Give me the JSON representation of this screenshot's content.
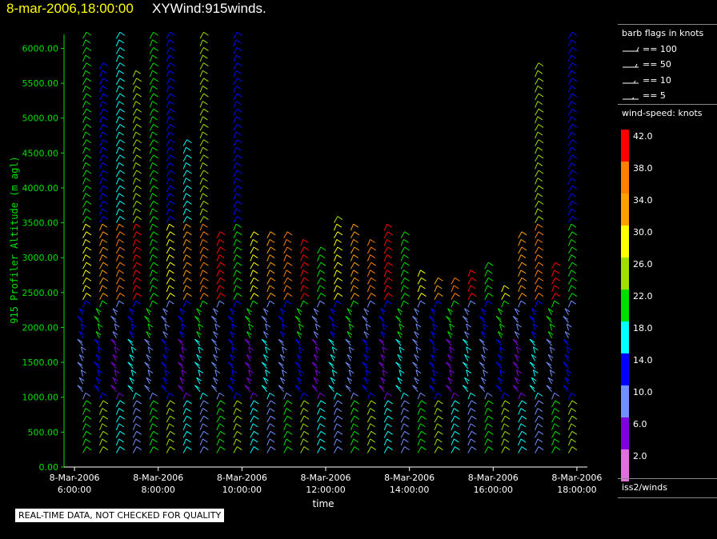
{
  "header": {
    "date": "8-mar-2006,18:00:00",
    "title": "XYWind:915winds."
  },
  "legend": {
    "barb_title": "barb flags in knots",
    "barb_items": [
      "== 100",
      "== 50",
      "== 10",
      "== 5"
    ],
    "speed_title": "wind-speed: knots",
    "speed_values": [
      "42.0",
      "38.0",
      "34.0",
      "30.0",
      "26.0",
      "22.0",
      "18.0",
      "14.0",
      "10.0",
      "6.0",
      "2.0"
    ],
    "speed_colors": [
      "#ff0000",
      "#ff8000",
      "#ffa000",
      "#ffff00",
      "#a0e000",
      "#00e000",
      "#00ffff",
      "#0000ff",
      "#7090ff",
      "#8000e0",
      "#e070e0"
    ],
    "source": "iss2/winds"
  },
  "disclaimer": "REAL-TIME DATA, NOT CHECKED FOR QUALITY",
  "chart_data": {
    "type": "scatter",
    "ylabel": "915 Profiler Altitude (m agl)",
    "xlabel": "time",
    "ylim": [
      0,
      6200
    ],
    "y_ticks": [
      "0.00",
      "500.00",
      "1000.00",
      "1500.00",
      "2000.00",
      "2500.00",
      "3000.00",
      "3500.00",
      "4000.00",
      "4500.00",
      "5000.00",
      "5500.00",
      "6000.00"
    ],
    "x_ticks": [
      {
        "date": "8-Mar-2006",
        "time": "6:00:00"
      },
      {
        "date": "8-Mar-2006",
        "time": "8:00:00"
      },
      {
        "date": "8-Mar-2006",
        "time": "10:00:00"
      },
      {
        "date": "8-Mar-2006",
        "time": "12:00:00"
      },
      {
        "date": "8-Mar-2006",
        "time": "14:00:00"
      },
      {
        "date": "8-Mar-2006",
        "time": "16:00:00"
      },
      {
        "date": "8-Mar-2006",
        "time": "18:00:00"
      }
    ],
    "profile_times_hours": [
      6.2,
      6.6,
      7.0,
      7.4,
      7.8,
      8.2,
      8.6,
      9.0,
      9.4,
      9.8,
      10.2,
      10.6,
      11.0,
      11.4,
      11.8,
      12.2,
      12.6,
      13.0,
      13.4,
      13.8,
      14.2,
      14.6,
      15.0,
      15.4,
      15.8,
      16.2,
      16.6,
      17.0,
      17.4,
      17.8
    ],
    "profile_top_m": [
      6200,
      5800,
      6200,
      5600,
      6200,
      6200,
      4700,
      6200,
      3300,
      6200,
      3300,
      3300,
      3300,
      3200,
      3100,
      3500,
      3400,
      3200,
      3400,
      3300,
      2800,
      2700,
      2700,
      2800,
      2900,
      2600,
      3300,
      5800,
      2900,
      6200
    ]
  }
}
